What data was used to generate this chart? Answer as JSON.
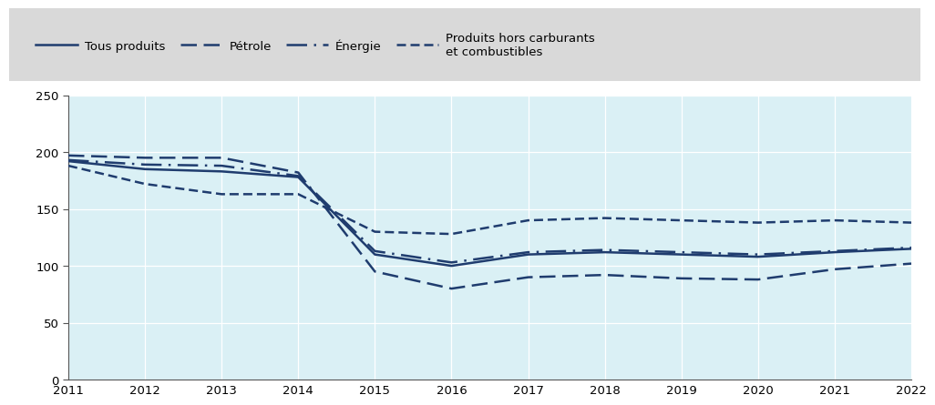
{
  "years": [
    2011,
    2012,
    2013,
    2014,
    2015,
    2016,
    2017,
    2018,
    2019,
    2020,
    2021,
    2022
  ],
  "tous_produits": [
    192,
    185,
    183,
    178,
    110,
    100,
    110,
    112,
    110,
    108,
    112,
    115
  ],
  "petrole": [
    197,
    195,
    195,
    182,
    95,
    80,
    90,
    92,
    89,
    88,
    97,
    102
  ],
  "energie": [
    193,
    189,
    188,
    179,
    113,
    103,
    112,
    114,
    112,
    110,
    113,
    116
  ],
  "hors_carburants": [
    188,
    172,
    163,
    163,
    130,
    128,
    140,
    142,
    140,
    138,
    140,
    138
  ],
  "line_color": "#1f3c6e",
  "plot_bg": "#daf0f5",
  "fig_bg": "#ffffff",
  "legend_bg": "#d9d9d9",
  "ylim": [
    0,
    250
  ],
  "yticks": [
    0,
    50,
    100,
    150,
    200,
    250
  ],
  "grid_color": "#ffffff",
  "tick_color": "#000000",
  "legend_labels": [
    "Tous produits",
    "Pétrole",
    "Énergie",
    "Produits hors carburants\net combustibles"
  ]
}
